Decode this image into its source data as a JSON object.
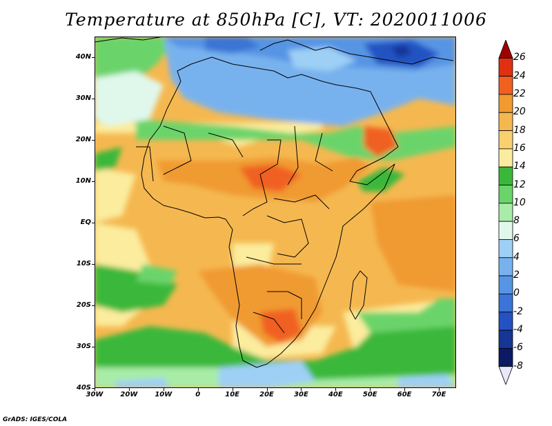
{
  "title": "Temperature at 850hPa [C], VT: 2020011006",
  "credit": "GrADS: IGES/COLA",
  "map": {
    "lon_range": [
      -30,
      75
    ],
    "lat_range": [
      -40,
      45
    ],
    "lat_ticks": [
      {
        "lat": 40,
        "label": "40N"
      },
      {
        "lat": 30,
        "label": "30N"
      },
      {
        "lat": 20,
        "label": "20N"
      },
      {
        "lat": 10,
        "label": "10N"
      },
      {
        "lat": 0,
        "label": "EQ"
      },
      {
        "lat": -10,
        "label": "10S"
      },
      {
        "lat": -20,
        "label": "20S"
      },
      {
        "lat": -30,
        "label": "30S"
      },
      {
        "lat": -40,
        "label": "40S"
      }
    ],
    "lon_ticks": [
      {
        "lon": -30,
        "label": "30W"
      },
      {
        "lon": -20,
        "label": "20W"
      },
      {
        "lon": -10,
        "label": "10W"
      },
      {
        "lon": 0,
        "label": "0"
      },
      {
        "lon": 10,
        "label": "10E"
      },
      {
        "lon": 20,
        "label": "20E"
      },
      {
        "lon": 30,
        "label": "30E"
      },
      {
        "lon": 40,
        "label": "40E"
      },
      {
        "lon": 50,
        "label": "50E"
      },
      {
        "lon": 60,
        "label": "60E"
      },
      {
        "lon": 70,
        "label": "70E"
      }
    ]
  },
  "colorbar": {
    "levels": [
      "26",
      "24",
      "22",
      "20",
      "18",
      "16",
      "14",
      "12",
      "10",
      "8",
      "6",
      "4",
      "2",
      "0",
      "-2",
      "-4",
      "-6",
      "-8"
    ],
    "colors": [
      "#a00000",
      "#e03010",
      "#f06020",
      "#f09a30",
      "#f5b850",
      "#f8d070",
      "#fbec9e",
      "#3ab83a",
      "#6ad46a",
      "#a8eca8",
      "#e0f8ec",
      "#9ed0f6",
      "#78b2ee",
      "#5694e4",
      "#3b74d6",
      "#2452c2",
      "#163696",
      "#0c1a66",
      "#e8e8f8"
    ]
  }
}
